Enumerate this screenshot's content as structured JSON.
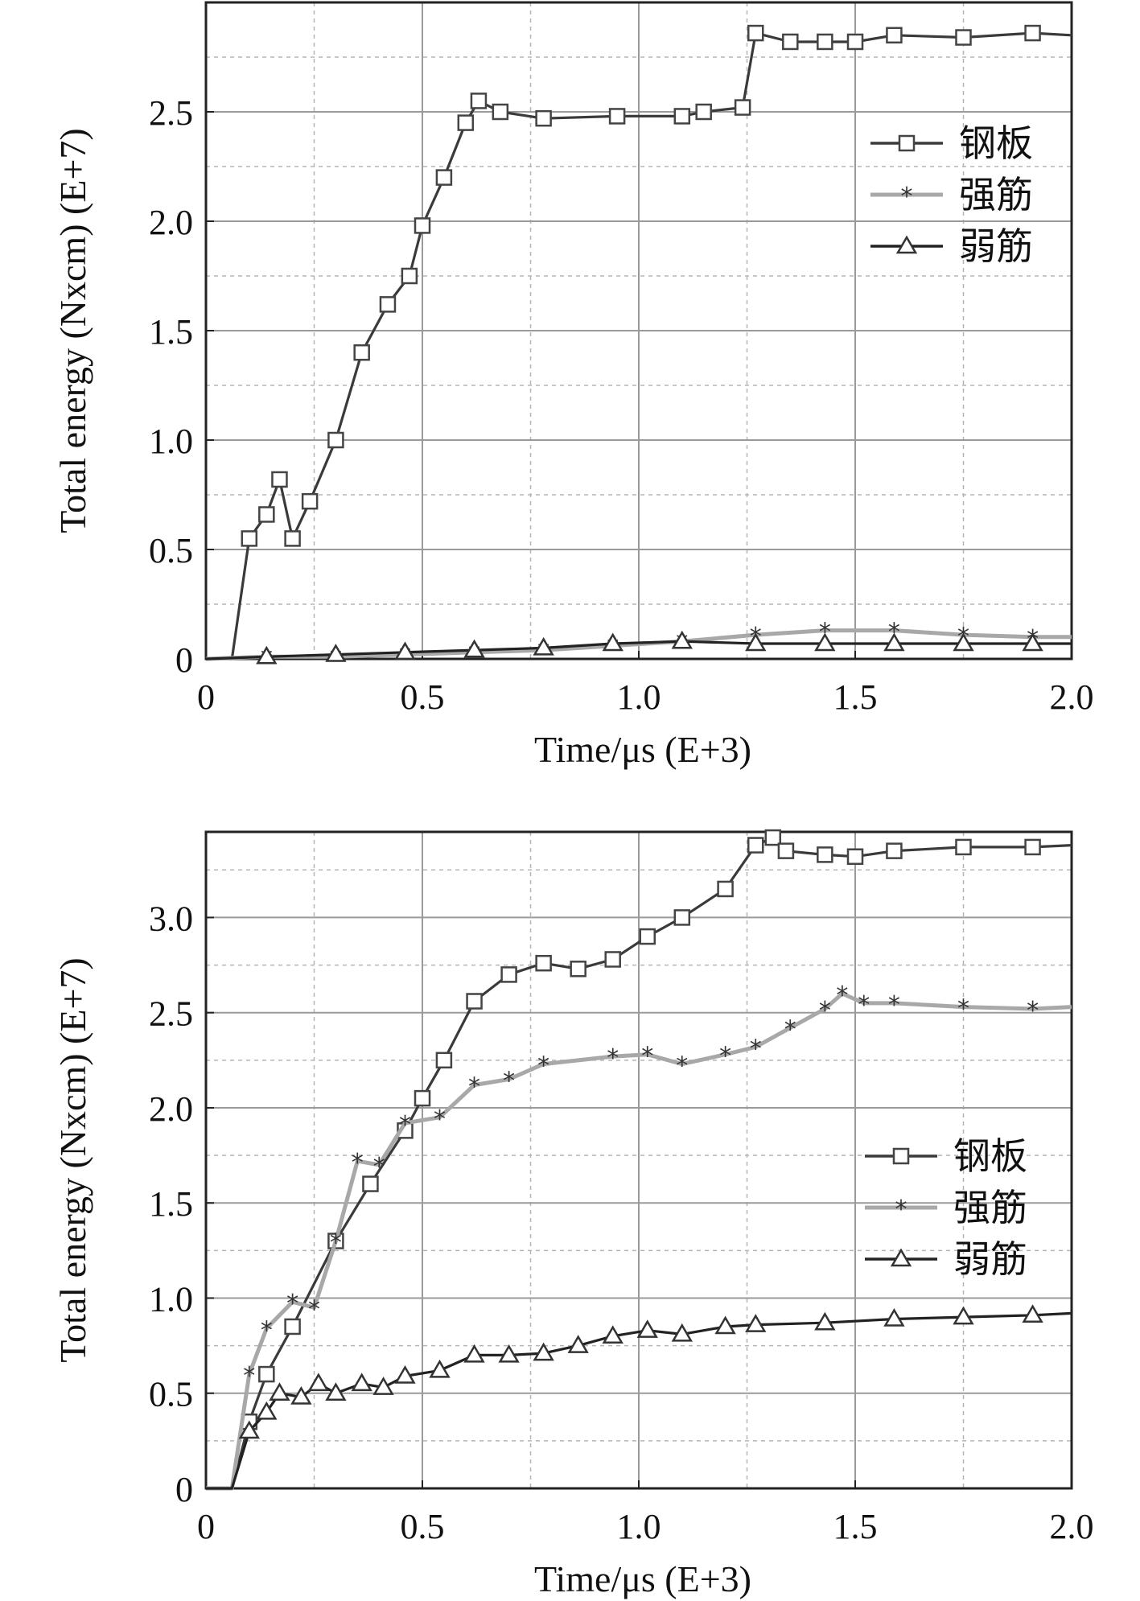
{
  "chart_data": [
    {
      "type": "line",
      "xlabel": "Time/μs (E+3)",
      "ylabel": "Total energy (Nxcm) (E+7)",
      "xlim": [
        0,
        2.0
      ],
      "ylim": [
        0,
        3.0
      ],
      "x_ticks": [
        0,
        0.5,
        1.0,
        1.5,
        2.0
      ],
      "x_tick_labels": [
        "0",
        "0.5",
        "1.0",
        "1.5",
        "2.0"
      ],
      "y_ticks": [
        0,
        0.5,
        1.0,
        1.5,
        2.0,
        2.5
      ],
      "y_tick_labels": [
        "0",
        "0.5",
        "1.0",
        "1.5",
        "2.0",
        "2.5"
      ],
      "grid": true,
      "legend_position": "top-right",
      "series": [
        {
          "name": "钢板",
          "marker": "square",
          "color": "#3a3a3a",
          "x": [
            0,
            0.06,
            0.1,
            0.14,
            0.17,
            0.2,
            0.24,
            0.3,
            0.36,
            0.42,
            0.47,
            0.5,
            0.55,
            0.6,
            0.63,
            0.68,
            0.78,
            0.95,
            1.1,
            1.15,
            1.24,
            1.27,
            1.35,
            1.43,
            1.5,
            1.59,
            1.75,
            1.91,
            2.0
          ],
          "y": [
            0,
            0.0,
            0.55,
            0.66,
            0.82,
            0.55,
            0.72,
            1.0,
            1.4,
            1.62,
            1.75,
            1.98,
            2.2,
            2.45,
            2.55,
            2.5,
            2.47,
            2.48,
            2.48,
            2.5,
            2.52,
            2.86,
            2.82,
            2.82,
            2.82,
            2.85,
            2.84,
            2.86,
            2.85
          ]
        },
        {
          "name": "强筋",
          "marker": "star",
          "color": "#a8a8a8",
          "x": [
            0,
            0.14,
            0.3,
            0.46,
            0.62,
            0.78,
            0.94,
            1.1,
            1.27,
            1.43,
            1.59,
            1.75,
            1.91,
            2.0
          ],
          "y": [
            0,
            0.01,
            0.01,
            0.02,
            0.03,
            0.04,
            0.06,
            0.08,
            0.11,
            0.13,
            0.13,
            0.11,
            0.1,
            0.1
          ]
        },
        {
          "name": "弱筋",
          "marker": "triangle",
          "color": "#222222",
          "x": [
            0,
            0.14,
            0.3,
            0.46,
            0.62,
            0.78,
            0.94,
            1.1,
            1.27,
            1.43,
            1.59,
            1.75,
            1.91,
            2.0
          ],
          "y": [
            0,
            0.01,
            0.02,
            0.03,
            0.04,
            0.05,
            0.07,
            0.08,
            0.07,
            0.07,
            0.07,
            0.07,
            0.07,
            0.07
          ]
        }
      ]
    },
    {
      "type": "line",
      "xlabel": "Time/μs (E+3)",
      "ylabel": "Total energy (Nxcm) (E+7)",
      "xlim": [
        0,
        2.0
      ],
      "ylim": [
        0,
        3.45
      ],
      "x_ticks": [
        0,
        0.5,
        1.0,
        1.5,
        2.0
      ],
      "x_tick_labels": [
        "0",
        "0.5",
        "1.0",
        "1.5",
        "2.0"
      ],
      "y_ticks": [
        0,
        0.5,
        1.0,
        1.5,
        2.0,
        2.5,
        3.0
      ],
      "y_tick_labels": [
        "0",
        "0.5",
        "1.0",
        "1.5",
        "2.0",
        "2.5",
        "3.0"
      ],
      "grid": true,
      "legend_position": "center-right",
      "series": [
        {
          "name": "钢板",
          "marker": "square",
          "color": "#3a3a3a",
          "x": [
            0,
            0.06,
            0.1,
            0.14,
            0.2,
            0.3,
            0.38,
            0.46,
            0.5,
            0.55,
            0.62,
            0.7,
            0.78,
            0.86,
            0.94,
            1.02,
            1.1,
            1.2,
            1.27,
            1.31,
            1.34,
            1.43,
            1.5,
            1.59,
            1.75,
            1.91,
            2.0
          ],
          "y": [
            0,
            0.0,
            0.35,
            0.6,
            0.85,
            1.3,
            1.6,
            1.88,
            2.05,
            2.25,
            2.56,
            2.7,
            2.76,
            2.73,
            2.78,
            2.9,
            3.0,
            3.15,
            3.38,
            3.42,
            3.35,
            3.33,
            3.32,
            3.35,
            3.37,
            3.37,
            3.38
          ]
        },
        {
          "name": "强筋",
          "marker": "star",
          "color": "#a8a8a8",
          "x": [
            0,
            0.06,
            0.1,
            0.14,
            0.2,
            0.25,
            0.3,
            0.35,
            0.4,
            0.46,
            0.54,
            0.62,
            0.7,
            0.78,
            0.94,
            1.02,
            1.1,
            1.2,
            1.27,
            1.35,
            1.43,
            1.47,
            1.52,
            1.59,
            1.75,
            1.91,
            2.0
          ],
          "y": [
            0,
            0.0,
            0.6,
            0.84,
            0.98,
            0.95,
            1.3,
            1.72,
            1.7,
            1.92,
            1.95,
            2.12,
            2.15,
            2.23,
            2.27,
            2.28,
            2.23,
            2.28,
            2.32,
            2.42,
            2.52,
            2.6,
            2.55,
            2.55,
            2.53,
            2.52,
            2.53
          ]
        },
        {
          "name": "弱筋",
          "marker": "triangle",
          "color": "#222222",
          "x": [
            0,
            0.06,
            0.1,
            0.14,
            0.17,
            0.22,
            0.26,
            0.3,
            0.36,
            0.41,
            0.46,
            0.54,
            0.62,
            0.7,
            0.78,
            0.86,
            0.94,
            1.02,
            1.1,
            1.2,
            1.27,
            1.43,
            1.59,
            1.75,
            1.91,
            2.0
          ],
          "y": [
            0,
            0.0,
            0.3,
            0.4,
            0.5,
            0.48,
            0.55,
            0.5,
            0.55,
            0.53,
            0.59,
            0.62,
            0.7,
            0.7,
            0.71,
            0.75,
            0.8,
            0.83,
            0.81,
            0.85,
            0.86,
            0.87,
            0.89,
            0.9,
            0.91,
            0.92
          ]
        }
      ]
    }
  ]
}
